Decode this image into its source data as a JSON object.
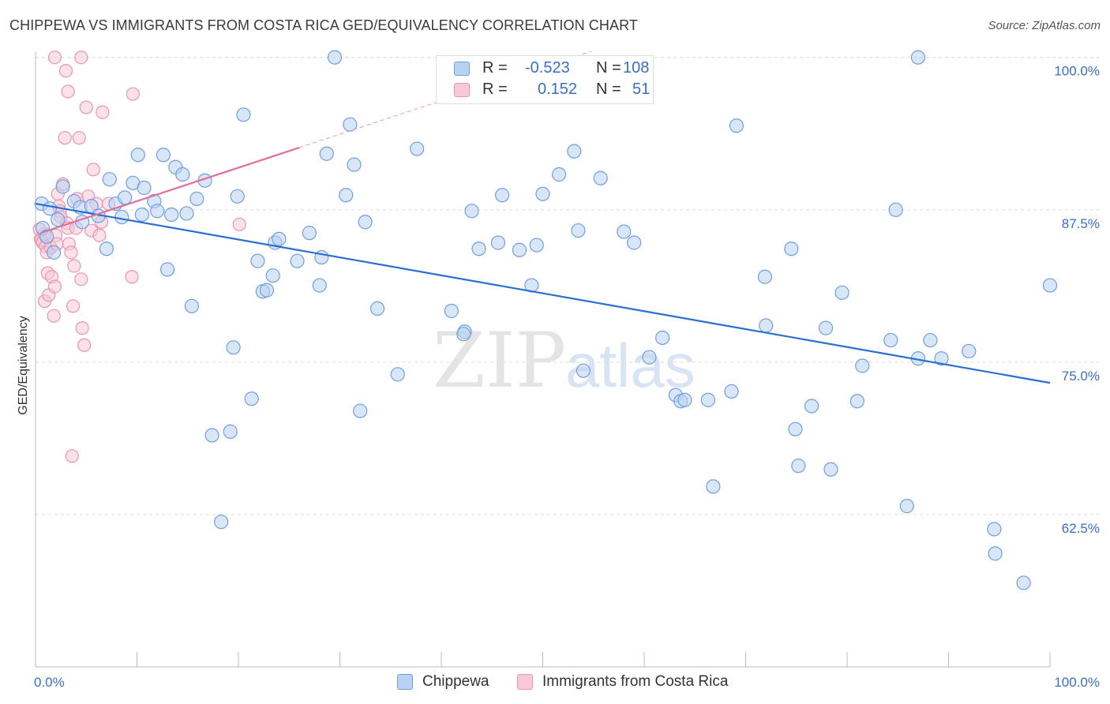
{
  "header": {
    "title": "CHIPPEWA VS IMMIGRANTS FROM COSTA RICA GED/EQUIVALENCY CORRELATION CHART",
    "source": "Source: ZipAtlas.com"
  },
  "watermark": {
    "zip": "ZIP",
    "atlas": "atlas"
  },
  "legend": {
    "r_label": "R =",
    "n_label": "N =",
    "series": [
      {
        "name": "Chippewa",
        "r": "-0.523",
        "n": "108"
      },
      {
        "name": "Immigrants from Costa Rica",
        "r": "0.152",
        "n": "51"
      }
    ]
  },
  "colors": {
    "chippewa_fill": "#b9d1f3",
    "chippewa_stroke": "#6f9fe0",
    "chippewa_line": "#2a6fd0",
    "costa_fill": "#f8c8d6",
    "costa_stroke": "#e995b1",
    "costa_line": "#e0709a",
    "tick_label": "#3a6fc4",
    "grid": "#dddddd"
  },
  "chart_data": {
    "type": "scatter",
    "title": "CHIPPEWA VS IMMIGRANTS FROM COSTA RICA GED/EQUIVALENCY CORRELATION CHART",
    "xlabel": "",
    "ylabel": "GED/Equivalency",
    "xlim": [
      0,
      100
    ],
    "ylim": [
      50.0,
      100.5
    ],
    "x_tick_labels": [
      {
        "value": 0,
        "label": "0.0%"
      },
      {
        "value": 100,
        "label": "100.0%"
      }
    ],
    "y_tick_labels": [
      {
        "value": 100.0,
        "label": "100.0%"
      },
      {
        "value": 87.5,
        "label": "87.5%"
      },
      {
        "value": 75.0,
        "label": "75.0%"
      },
      {
        "value": 62.5,
        "label": "62.5%"
      }
    ],
    "grid": true,
    "legend_position": "top-center",
    "series": [
      {
        "name": "Chippewa",
        "trend": {
          "x": [
            0,
            100
          ],
          "y": [
            88.0,
            73.3
          ]
        },
        "points": [
          [
            0.6,
            88.0
          ],
          [
            0.7,
            86.0
          ],
          [
            1.1,
            85.3
          ],
          [
            1.4,
            87.6
          ],
          [
            1.8,
            84.0
          ],
          [
            2.2,
            86.7
          ],
          [
            2.7,
            89.4
          ],
          [
            3.8,
            88.2
          ],
          [
            4.4,
            87.7
          ],
          [
            5.5,
            87.8
          ],
          [
            4.6,
            86.5
          ],
          [
            6.2,
            87.0
          ],
          [
            7.0,
            84.3
          ],
          [
            7.3,
            90.0
          ],
          [
            7.9,
            88.0
          ],
          [
            8.5,
            86.9
          ],
          [
            8.8,
            88.5
          ],
          [
            9.6,
            89.7
          ],
          [
            10.1,
            92.0
          ],
          [
            10.5,
            87.1
          ],
          [
            10.7,
            89.3
          ],
          [
            11.7,
            88.2
          ],
          [
            12.0,
            87.4
          ],
          [
            12.6,
            92.0
          ],
          [
            13.0,
            82.6
          ],
          [
            13.4,
            87.1
          ],
          [
            13.8,
            91.0
          ],
          [
            14.5,
            90.4
          ],
          [
            14.9,
            87.2
          ],
          [
            15.4,
            79.6
          ],
          [
            15.9,
            88.4
          ],
          [
            16.7,
            89.9
          ],
          [
            17.4,
            69.0
          ],
          [
            18.3,
            61.9
          ],
          [
            19.2,
            69.3
          ],
          [
            19.9,
            88.6
          ],
          [
            19.5,
            76.2
          ],
          [
            21.3,
            72.0
          ],
          [
            20.5,
            95.3
          ],
          [
            21.9,
            83.3
          ],
          [
            22.4,
            80.8
          ],
          [
            22.8,
            80.9
          ],
          [
            23.4,
            82.1
          ],
          [
            23.6,
            84.8
          ],
          [
            24.0,
            85.1
          ],
          [
            25.8,
            83.3
          ],
          [
            27.0,
            85.6
          ],
          [
            28.0,
            81.3
          ],
          [
            28.2,
            83.6
          ],
          [
            28.7,
            92.1
          ],
          [
            29.5,
            100.0
          ],
          [
            31.0,
            94.5
          ],
          [
            31.4,
            91.2
          ],
          [
            32.0,
            71.0
          ],
          [
            32.5,
            86.5
          ],
          [
            30.6,
            88.7
          ],
          [
            33.7,
            79.4
          ],
          [
            35.7,
            74.0
          ],
          [
            37.6,
            92.5
          ],
          [
            41.0,
            79.2
          ],
          [
            42.3,
            77.5
          ],
          [
            42.2,
            77.3
          ],
          [
            43.0,
            87.4
          ],
          [
            43.7,
            84.3
          ],
          [
            45.6,
            84.8
          ],
          [
            46.0,
            88.7
          ],
          [
            47.7,
            84.2
          ],
          [
            48.9,
            81.3
          ],
          [
            49.4,
            84.6
          ],
          [
            50.0,
            88.8
          ],
          [
            51.6,
            90.4
          ],
          [
            53.1,
            92.3
          ],
          [
            53.5,
            85.8
          ],
          [
            54.0,
            74.3
          ],
          [
            55.7,
            90.1
          ],
          [
            58.0,
            85.7
          ],
          [
            59.0,
            84.8
          ],
          [
            60.5,
            75.4
          ],
          [
            61.8,
            77.0
          ],
          [
            63.1,
            72.3
          ],
          [
            63.6,
            71.8
          ],
          [
            64.0,
            71.9
          ],
          [
            66.3,
            71.9
          ],
          [
            66.8,
            64.8
          ],
          [
            68.6,
            72.6
          ],
          [
            69.1,
            94.4
          ],
          [
            71.9,
            82.0
          ],
          [
            77.9,
            77.8
          ],
          [
            72.0,
            78.0
          ],
          [
            74.5,
            84.3
          ],
          [
            74.9,
            69.5
          ],
          [
            75.2,
            66.5
          ],
          [
            76.5,
            71.4
          ],
          [
            78.4,
            66.2
          ],
          [
            79.5,
            80.7
          ],
          [
            81.0,
            71.8
          ],
          [
            81.5,
            74.7
          ],
          [
            87.0,
            100.0
          ],
          [
            84.3,
            76.8
          ],
          [
            84.8,
            87.5
          ],
          [
            85.9,
            63.2
          ],
          [
            87.0,
            75.3
          ],
          [
            88.2,
            76.8
          ],
          [
            89.3,
            75.3
          ],
          [
            92.0,
            75.9
          ],
          [
            94.5,
            61.3
          ],
          [
            94.6,
            59.3
          ],
          [
            97.4,
            56.9
          ],
          [
            100.0,
            81.3
          ]
        ]
      },
      {
        "name": "Immigrants from Costa Rica",
        "trend": {
          "x": [
            0.5,
            26.0
          ],
          "y": [
            85.6,
            92.6
          ]
        },
        "trend_dashed": {
          "x": [
            26.0,
            100.0
          ],
          "y": [
            92.6,
            112.9
          ]
        },
        "points": [
          [
            0.4,
            85.9
          ],
          [
            0.5,
            85.1
          ],
          [
            0.6,
            85.0
          ],
          [
            0.7,
            84.8
          ],
          [
            0.9,
            85.5
          ],
          [
            1.0,
            84.5
          ],
          [
            1.1,
            84.0
          ],
          [
            1.2,
            82.3
          ],
          [
            0.9,
            80.0
          ],
          [
            1.3,
            80.5
          ],
          [
            1.5,
            84.4
          ],
          [
            1.6,
            82.0
          ],
          [
            1.8,
            78.8
          ],
          [
            1.9,
            81.2
          ],
          [
            2.0,
            85.4
          ],
          [
            2.1,
            84.7
          ],
          [
            2.2,
            88.8
          ],
          [
            2.3,
            87.8
          ],
          [
            2.4,
            87.4
          ],
          [
            2.5,
            86.9
          ],
          [
            2.7,
            89.6
          ],
          [
            2.9,
            93.4
          ],
          [
            3.1,
            86.4
          ],
          [
            3.2,
            86.0
          ],
          [
            3.3,
            84.7
          ],
          [
            3.5,
            84.0
          ],
          [
            3.7,
            79.6
          ],
          [
            3.8,
            82.9
          ],
          [
            3.6,
            67.3
          ],
          [
            4.0,
            86.0
          ],
          [
            4.1,
            88.4
          ],
          [
            4.3,
            93.4
          ],
          [
            4.5,
            81.8
          ],
          [
            4.6,
            77.8
          ],
          [
            4.8,
            76.4
          ],
          [
            5.0,
            95.9
          ],
          [
            5.2,
            88.6
          ],
          [
            5.5,
            85.8
          ],
          [
            5.7,
            90.8
          ],
          [
            6.0,
            88.0
          ],
          [
            6.3,
            85.4
          ],
          [
            6.5,
            86.5
          ],
          [
            6.6,
            95.5
          ],
          [
            7.2,
            88.0
          ],
          [
            3.0,
            98.9
          ],
          [
            3.2,
            97.2
          ],
          [
            1.9,
            100.0
          ],
          [
            4.5,
            100.0
          ],
          [
            9.6,
            97.0
          ],
          [
            9.5,
            82.0
          ],
          [
            20.1,
            86.3
          ]
        ]
      }
    ]
  }
}
